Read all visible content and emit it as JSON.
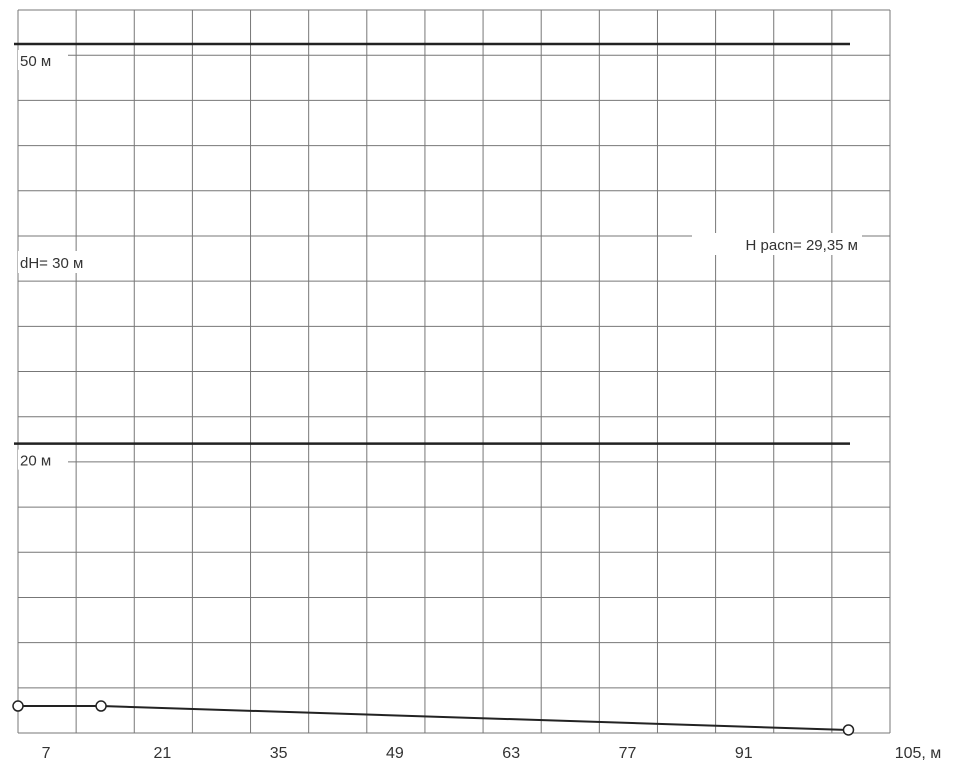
{
  "chart_data": {
    "type": "line",
    "title": "",
    "xlabel": "",
    "ylabel": "",
    "x_tick_labels": [
      "7",
      "21",
      "35",
      "49",
      "63",
      "77",
      "91",
      "105, м"
    ],
    "x_ticks": [
      7,
      21,
      35,
      49,
      63,
      77,
      91,
      105
    ],
    "xlim": [
      0,
      105
    ],
    "ylim": [
      0,
      55
    ],
    "grid": true,
    "reference_lines": [
      {
        "label": "50 м",
        "y": 50
      },
      {
        "label": "20 м",
        "y": 20
      }
    ],
    "annotations": [
      {
        "text": "dH= 30 м"
      },
      {
        "text": "H pacn= 29,35 м"
      }
    ],
    "series": [
      {
        "x": [
          0,
          10,
          100
        ],
        "y": [
          0.3,
          0.3,
          -1.5
        ],
        "markers": "circle"
      }
    ],
    "colors": {
      "line": "#222222",
      "grid": "#777777",
      "marker_fill": "#ffffff"
    }
  }
}
